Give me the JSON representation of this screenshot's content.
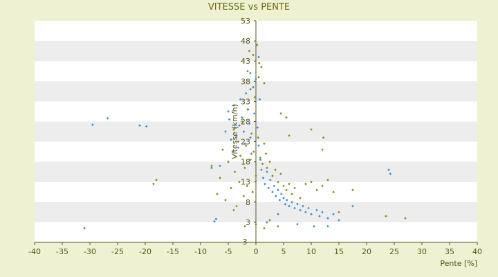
{
  "colors": {
    "page_background": "#eef1d2",
    "plot_band_white": "#ffffff",
    "plot_band_grey": "#ededed",
    "axis": "#55551a",
    "series_blue": "#3d8fd6",
    "series_olive": "#8c8c1e"
  },
  "chart_data": {
    "type": "scatter",
    "title": "VITESSE vs PENTE",
    "xlabel": "Pente [%]",
    "ylabel": "Vitesse (km/h)",
    "xlim": [
      -40,
      40
    ],
    "ylim": [
      -2,
      53
    ],
    "grid": "horizontal bands",
    "x_ticks": [
      -40,
      -35,
      -30,
      -25,
      -20,
      -15,
      -10,
      -5,
      0,
      5,
      10,
      15,
      20,
      25,
      30,
      35,
      40
    ],
    "x_tick_labels": [
      "-40",
      "-35",
      "-30",
      "-25",
      "-20",
      "-15",
      "-10",
      "-5",
      "0",
      "5",
      "10",
      "15",
      "20",
      "25",
      "30",
      "35",
      "40"
    ],
    "y_ticks": [
      3,
      8,
      13,
      18,
      23,
      28,
      33,
      38,
      43,
      48,
      53
    ],
    "y_tick_labels": [
      "3",
      "8",
      "13",
      "18",
      "23",
      "28",
      "33",
      "38",
      "43",
      "48",
      "53"
    ],
    "bottom_label": "3",
    "series": [
      {
        "color": "#3d8fd6",
        "points": [
          [
            -29.5,
            27.2
          ],
          [
            -26.8,
            28.8
          ],
          [
            -21.0,
            27.0
          ],
          [
            -19.8,
            26.8
          ],
          [
            -31.0,
            1.5
          ],
          [
            -7.5,
            3.2
          ],
          [
            -7.2,
            3.8
          ],
          [
            -8.0,
            16.5
          ],
          [
            -6.5,
            17.0
          ],
          [
            -5.5,
            25.5
          ],
          [
            -5.0,
            30.5
          ],
          [
            -4.8,
            28.5
          ],
          [
            -4.5,
            23.5
          ],
          [
            -4.2,
            20.5
          ],
          [
            -4.0,
            32.0
          ],
          [
            -3.8,
            26.5
          ],
          [
            -3.5,
            24.5
          ],
          [
            -3.2,
            21.5
          ],
          [
            -3.0,
            27.0
          ],
          [
            -2.8,
            33.5
          ],
          [
            -2.5,
            29.0
          ],
          [
            -2.2,
            25.5
          ],
          [
            -2.0,
            22.5
          ],
          [
            -1.8,
            35.0
          ],
          [
            -1.5,
            31.0
          ],
          [
            -1.2,
            27.5
          ],
          [
            -1.0,
            24.0
          ],
          [
            -0.8,
            20.0
          ],
          [
            -0.5,
            36.5
          ],
          [
            -0.3,
            30.0
          ],
          [
            0.0,
            38.5
          ],
          [
            0.3,
            26.5
          ],
          [
            0.5,
            22.0
          ],
          [
            0.8,
            18.5
          ],
          [
            1.0,
            16.0
          ],
          [
            1.3,
            14.0
          ],
          [
            1.6,
            12.5
          ],
          [
            2.0,
            15.5
          ],
          [
            2.3,
            11.5
          ],
          [
            2.6,
            13.5
          ],
          [
            3.0,
            10.5
          ],
          [
            3.3,
            12.0
          ],
          [
            3.6,
            9.5
          ],
          [
            4.0,
            11.0
          ],
          [
            4.3,
            8.5
          ],
          [
            4.6,
            10.0
          ],
          [
            5.0,
            9.0
          ],
          [
            5.3,
            7.5
          ],
          [
            5.6,
            8.5
          ],
          [
            6.0,
            7.0
          ],
          [
            6.5,
            8.0
          ],
          [
            7.0,
            6.5
          ],
          [
            7.5,
            7.5
          ],
          [
            8.0,
            6.0
          ],
          [
            8.5,
            7.0
          ],
          [
            9.0,
            5.5
          ],
          [
            9.5,
            6.5
          ],
          [
            10.0,
            5.0
          ],
          [
            11.0,
            6.0
          ],
          [
            11.5,
            4.5
          ],
          [
            12.0,
            5.5
          ],
          [
            13.0,
            4.0
          ],
          [
            14.0,
            5.0
          ],
          [
            15.0,
            3.5
          ],
          [
            17.5,
            7.0
          ],
          [
            24.0,
            16.0
          ],
          [
            24.3,
            15.0
          ],
          [
            10.5,
            2.0
          ],
          [
            13.0,
            2.0
          ],
          [
            7.5,
            2.5
          ],
          [
            4.0,
            5.0
          ],
          [
            2.0,
            3.0
          ],
          [
            0.5,
            44.0
          ],
          [
            -1.0,
            40.0
          ],
          [
            0.7,
            33.5
          ]
        ]
      },
      {
        "color": "#8c8c1e",
        "points": [
          [
            -18.5,
            12.5
          ],
          [
            -18.0,
            13.5
          ],
          [
            -8.0,
            17.0
          ],
          [
            -7.0,
            10.0
          ],
          [
            -6.5,
            14.0
          ],
          [
            -6.0,
            21.0
          ],
          [
            -5.5,
            8.5
          ],
          [
            -5.0,
            18.0
          ],
          [
            -4.5,
            11.5
          ],
          [
            -4.0,
            26.0
          ],
          [
            -3.8,
            15.5
          ],
          [
            -3.5,
            7.0
          ],
          [
            -3.2,
            23.0
          ],
          [
            -3.0,
            13.0
          ],
          [
            -2.8,
            19.5
          ],
          [
            -2.5,
            28.0
          ],
          [
            -2.2,
            9.5
          ],
          [
            -2.0,
            16.5
          ],
          [
            -1.8,
            22.0
          ],
          [
            -1.6,
            12.0
          ],
          [
            -1.4,
            31.0
          ],
          [
            -1.2,
            45.5
          ],
          [
            -1.0,
            18.5
          ],
          [
            -0.8,
            25.0
          ],
          [
            -0.6,
            10.5
          ],
          [
            -0.4,
            20.5
          ],
          [
            -0.2,
            34.0
          ],
          [
            0.0,
            14.5
          ],
          [
            0.2,
            47.0
          ],
          [
            0.4,
            24.0
          ],
          [
            0.6,
            42.5
          ],
          [
            0.8,
            19.0
          ],
          [
            1.0,
            41.5
          ],
          [
            1.2,
            17.5
          ],
          [
            1.5,
            22.5
          ],
          [
            1.8,
            20.0
          ],
          [
            2.0,
            16.5
          ],
          [
            2.5,
            18.0
          ],
          [
            3.0,
            14.5
          ],
          [
            3.5,
            16.0
          ],
          [
            4.0,
            13.0
          ],
          [
            4.5,
            15.0
          ],
          [
            5.0,
            12.0
          ],
          [
            5.5,
            11.0
          ],
          [
            6.0,
            12.5
          ],
          [
            6.5,
            10.0
          ],
          [
            7.0,
            11.5
          ],
          [
            8.0,
            9.0
          ],
          [
            9.0,
            12.5
          ],
          [
            10.0,
            13.0
          ],
          [
            11.0,
            11.0
          ],
          [
            12.0,
            12.0
          ],
          [
            13.0,
            13.5
          ],
          [
            14.0,
            10.5
          ],
          [
            17.5,
            11.0
          ],
          [
            10.0,
            26.0
          ],
          [
            12.0,
            21.0
          ],
          [
            12.2,
            24.0
          ],
          [
            6.0,
            24.5
          ],
          [
            4.5,
            30.0
          ],
          [
            5.5,
            29.0
          ],
          [
            23.5,
            4.5
          ],
          [
            27.0,
            4.0
          ],
          [
            15.0,
            5.5
          ],
          [
            4.0,
            2.0
          ],
          [
            2.5,
            3.5
          ],
          [
            1.5,
            1.5
          ],
          [
            0.0,
            2.5
          ],
          [
            -2.0,
            2.0
          ],
          [
            -4.0,
            6.0
          ],
          [
            -1.0,
            36.0
          ],
          [
            0.5,
            39.0
          ],
          [
            -0.5,
            44.5
          ],
          [
            1.5,
            37.5
          ],
          [
            -1.5,
            40.5
          ]
        ]
      }
    ]
  }
}
